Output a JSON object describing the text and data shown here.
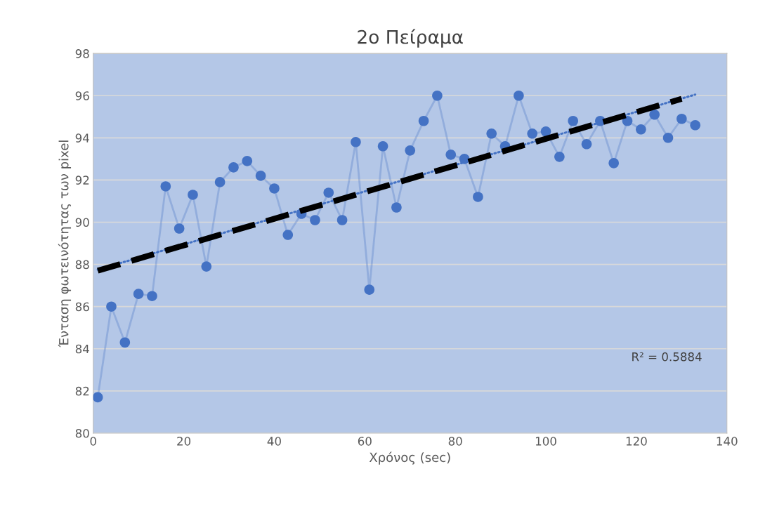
{
  "chart_data": {
    "type": "line",
    "title": "2ο Πείραμα",
    "xlabel": "Χρόνος (sec)",
    "ylabel": "Ένταση φωτεινότητας των pixel",
    "x": [
      1,
      4,
      7,
      10,
      13,
      16,
      19,
      22,
      25,
      28,
      31,
      34,
      37,
      40,
      43,
      46,
      49,
      52,
      55,
      58,
      61,
      64,
      67,
      70,
      73,
      76,
      79,
      82,
      85,
      88,
      91,
      94,
      97,
      100,
      103,
      106,
      109,
      112,
      115,
      118,
      121,
      124,
      127,
      130,
      133
    ],
    "series": [
      {
        "color": "#4472c4",
        "marker": "circle",
        "line_style": "solid",
        "values": [
          81.7,
          86.0,
          84.3,
          86.6,
          86.5,
          91.7,
          89.7,
          91.3,
          87.9,
          91.9,
          92.6,
          92.9,
          92.2,
          91.6,
          89.4,
          90.4,
          90.1,
          91.4,
          90.1,
          93.8,
          86.8,
          93.6,
          90.7,
          93.4,
          94.8,
          96.0,
          93.2,
          93.0,
          91.2,
          94.2,
          93.6,
          96.0,
          94.2,
          94.3,
          93.1,
          94.8,
          93.7,
          94.8,
          92.8,
          94.8,
          94.4,
          95.1,
          94.0,
          94.9,
          94.6
        ]
      },
      {
        "type": "line",
        "color": "#4472c4",
        "marker": "none",
        "line_style": "dotted",
        "x": [
          1,
          133
        ],
        "values": [
          87.75,
          96.05
        ]
      },
      {
        "type": "line",
        "color": "#000000",
        "marker": "none",
        "line_style": "dashed",
        "x": [
          1,
          130
        ],
        "values": [
          87.7,
          95.85
        ]
      }
    ],
    "annotations": [
      "R² = 0.5884"
    ],
    "xlim": [
      0,
      140
    ],
    "xticks": [
      0,
      20,
      40,
      60,
      80,
      100,
      120,
      140
    ],
    "ylim": [
      80,
      98
    ],
    "yticks": [
      80,
      82,
      84,
      86,
      88,
      90,
      92,
      94,
      96,
      98
    ],
    "grid": "y",
    "legend": false
  }
}
